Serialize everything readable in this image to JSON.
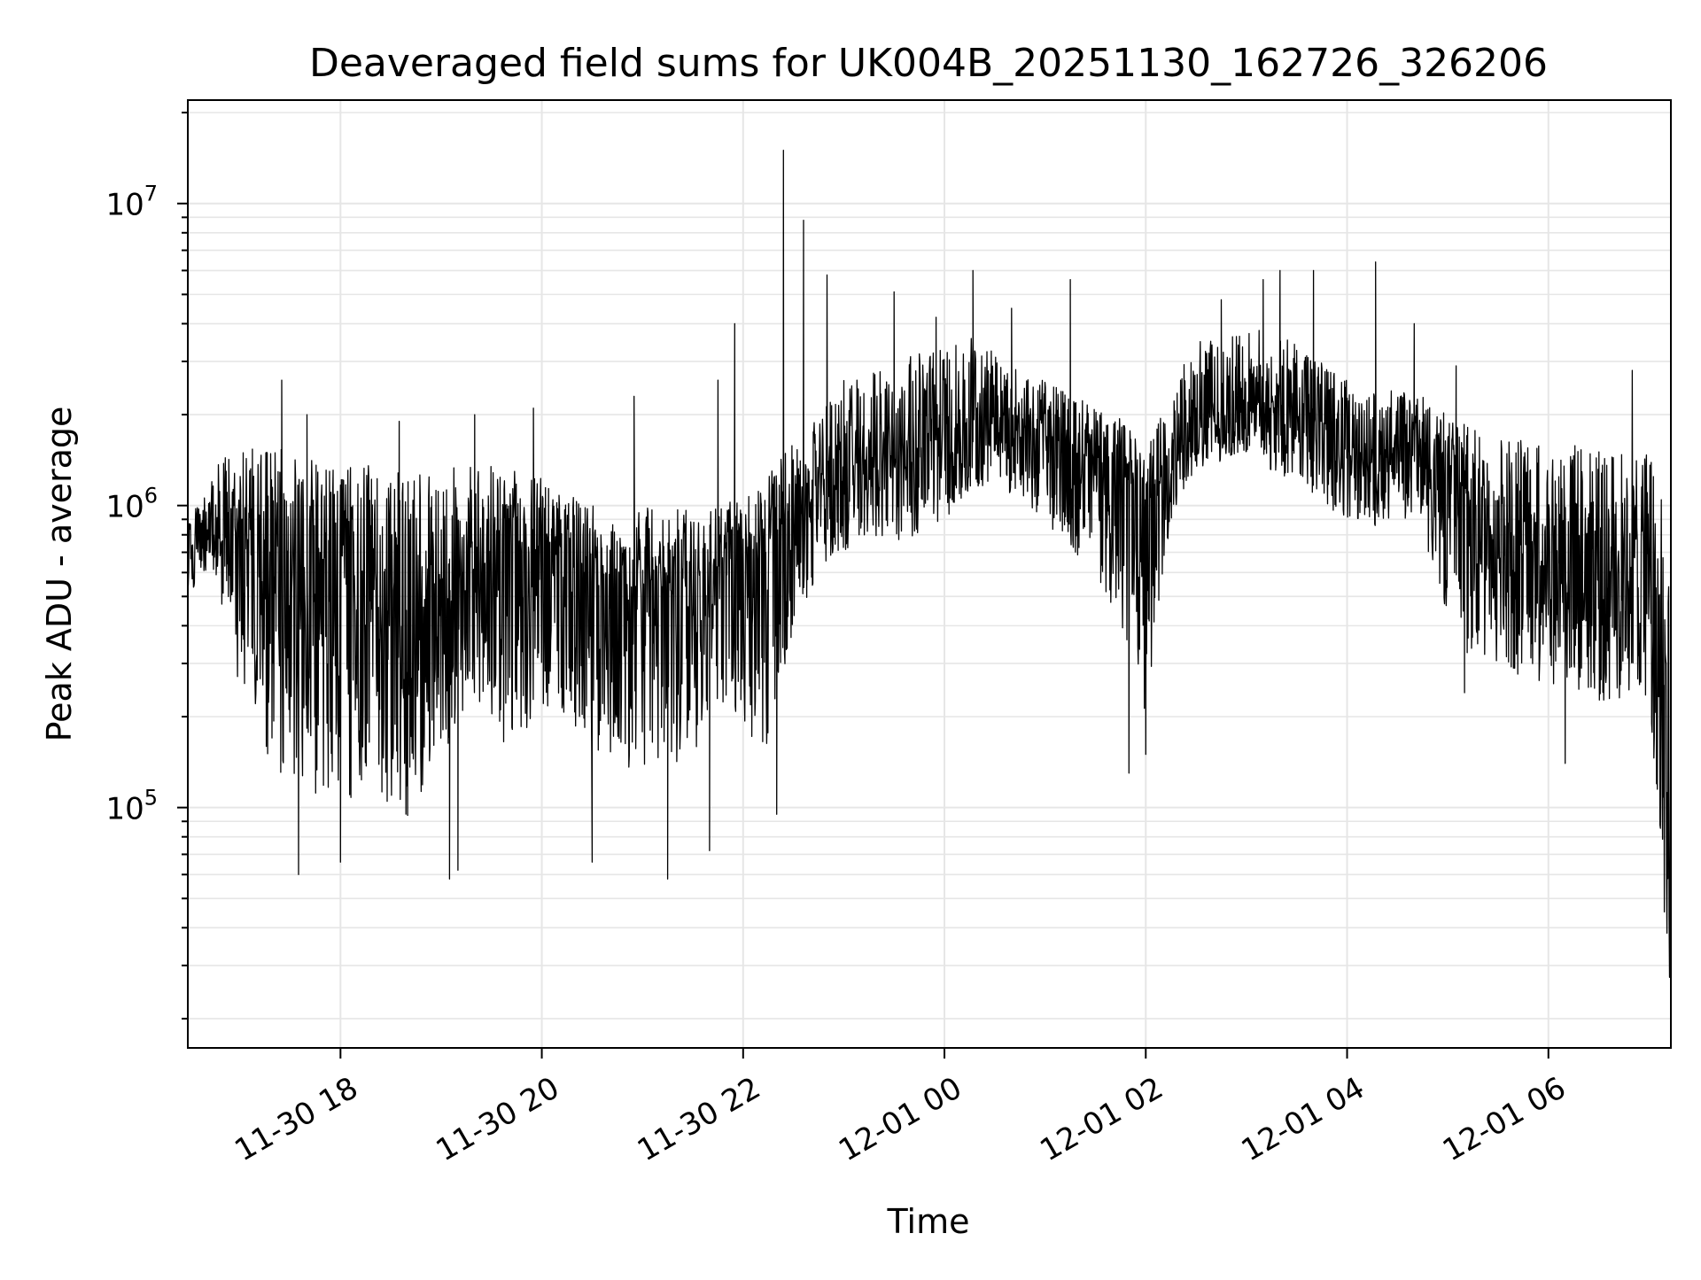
{
  "chart_data": {
    "type": "line",
    "title": "Deaveraged field sums for UK004B_20251130_162726_326206",
    "xlabel": "Time",
    "ylabel": "Peak ADU - average",
    "x_axis": {
      "kind": "datetime",
      "start": "2025-11-30T16:29:00",
      "end": "2025-12-01T07:13:00",
      "tick_values": [
        "2025-11-30T18:00",
        "2025-11-30T20:00",
        "2025-11-30T22:00",
        "2025-12-01T00:00",
        "2025-12-01T02:00",
        "2025-12-01T04:00",
        "2025-12-01T06:00"
      ],
      "tick_labels": [
        "11-30 18",
        "11-30 20",
        "11-30 22",
        "12-01 00",
        "12-01 02",
        "12-01 04",
        "12-01 06"
      ]
    },
    "y_axis": {
      "scale": "log",
      "ylim": [
        16000,
        22000000
      ],
      "major_ticks": [
        100000,
        1000000,
        10000000
      ],
      "major_tick_labels": [
        {
          "base": "10",
          "exp": "5"
        },
        {
          "base": "10",
          "exp": "6"
        },
        {
          "base": "10",
          "exp": "7"
        }
      ]
    },
    "grid": true,
    "line_color": "#000000",
    "grid_color": "#e6e6e6",
    "series": [
      {
        "time": [
          "2025-11-30T16:29",
          "2025-11-30T16:45",
          "2025-11-30T17:00",
          "2025-11-30T17:15",
          "2025-11-30T17:30",
          "2025-11-30T17:45",
          "2025-11-30T18:00",
          "2025-11-30T18:15",
          "2025-11-30T18:30",
          "2025-11-30T18:45",
          "2025-11-30T19:00",
          "2025-11-30T19:15",
          "2025-11-30T19:30",
          "2025-11-30T19:45",
          "2025-11-30T20:00",
          "2025-11-30T20:15",
          "2025-11-30T20:30",
          "2025-11-30T20:45",
          "2025-11-30T21:00",
          "2025-11-30T21:15",
          "2025-11-30T21:30",
          "2025-11-30T21:45",
          "2025-11-30T22:00",
          "2025-11-30T22:15",
          "2025-11-30T22:30",
          "2025-11-30T22:45",
          "2025-11-30T23:00",
          "2025-11-30T23:15",
          "2025-11-30T23:30",
          "2025-11-30T23:45",
          "2025-12-01T00:00",
          "2025-12-01T00:15",
          "2025-12-01T00:30",
          "2025-12-01T00:45",
          "2025-12-01T01:00",
          "2025-12-01T01:15",
          "2025-12-01T01:30",
          "2025-12-01T01:45",
          "2025-12-01T02:00",
          "2025-12-01T02:15",
          "2025-12-01T02:30",
          "2025-12-01T02:45",
          "2025-12-01T03:00",
          "2025-12-01T03:15",
          "2025-12-01T03:30",
          "2025-12-01T03:45",
          "2025-12-01T04:00",
          "2025-12-01T04:15",
          "2025-12-01T04:30",
          "2025-12-01T04:45",
          "2025-12-01T05:00",
          "2025-12-01T05:15",
          "2025-12-01T05:30",
          "2025-12-01T05:45",
          "2025-12-01T06:00",
          "2025-12-01T06:15",
          "2025-12-01T06:30",
          "2025-12-01T06:45",
          "2025-12-01T07:00",
          "2025-12-01T07:13"
        ],
        "median": [
          650000,
          900000,
          800000,
          700000,
          650000,
          600000,
          550000,
          500000,
          480000,
          450000,
          500000,
          550000,
          600000,
          650000,
          700000,
          600000,
          550000,
          500000,
          550000,
          500000,
          550000,
          600000,
          650000,
          700000,
          900000,
          1100000,
          1300000,
          1400000,
          1500000,
          1600000,
          1700000,
          1900000,
          2000000,
          1800000,
          1700000,
          1500000,
          1400000,
          1300000,
          1000000,
          1300000,
          1900000,
          2000000,
          2200000,
          2100000,
          2000000,
          1700000,
          1500000,
          1400000,
          1500000,
          1600000,
          1300000,
          1000000,
          900000,
          800000,
          800000,
          750000,
          700000,
          700000,
          650000,
          100000
        ],
        "low": [
          520000,
          600000,
          250000,
          150000,
          120000,
          110000,
          100000,
          120000,
          100000,
          90000,
          150000,
          200000,
          180000,
          150000,
          220000,
          200000,
          150000,
          130000,
          140000,
          120000,
          150000,
          200000,
          180000,
          150000,
          400000,
          600000,
          700000,
          800000,
          750000,
          800000,
          900000,
          1100000,
          1200000,
          1000000,
          900000,
          700000,
          600000,
          400000,
          200000,
          900000,
          1300000,
          1400000,
          1500000,
          1300000,
          1200000,
          1000000,
          900000,
          850000,
          900000,
          800000,
          400000,
          300000,
          280000,
          250000,
          260000,
          240000,
          220000,
          230000,
          200000,
          22000
        ],
        "high": [
          850000,
          1400000,
          1500000,
          1600000,
          1500000,
          1400000,
          1400000,
          1400000,
          1300000,
          1300000,
          1400000,
          1400000,
          1400000,
          1300000,
          1300000,
          1100000,
          1000000,
          900000,
          1000000,
          950000,
          1000000,
          1000000,
          1100000,
          1300000,
          1600000,
          2000000,
          2600000,
          2900000,
          3000000,
          3200000,
          3400000,
          3600000,
          3200000,
          2800000,
          2600000,
          2400000,
          2200000,
          2000000,
          1500000,
          2600000,
          3600000,
          3500000,
          3800000,
          3900000,
          3500000,
          3000000,
          2600000,
          2400000,
          2500000,
          2300000,
          2000000,
          1800000,
          1700000,
          1700000,
          1600000,
          1600000,
          1550000,
          1500000,
          1500000,
          1000000
        ],
        "spikes": [
          {
            "time": "2025-11-30T17:25",
            "value": 2600000
          },
          {
            "time": "2025-11-30T17:40",
            "value": 2000000
          },
          {
            "time": "2025-11-30T18:35",
            "value": 1900000
          },
          {
            "time": "2025-11-30T19:20",
            "value": 2000000
          },
          {
            "time": "2025-11-30T19:55",
            "value": 2100000
          },
          {
            "time": "2025-11-30T20:55",
            "value": 2300000
          },
          {
            "time": "2025-11-30T21:45",
            "value": 2600000
          },
          {
            "time": "2025-11-30T21:55",
            "value": 4000000
          },
          {
            "time": "2025-11-30T22:24",
            "value": 15000000
          },
          {
            "time": "2025-11-30T22:36",
            "value": 8800000
          },
          {
            "time": "2025-11-30T22:50",
            "value": 5800000
          },
          {
            "time": "2025-11-30T23:30",
            "value": 5100000
          },
          {
            "time": "2025-11-30T23:55",
            "value": 4200000
          },
          {
            "time": "2025-12-01T00:17",
            "value": 6000000
          },
          {
            "time": "2025-12-01T00:40",
            "value": 4500000
          },
          {
            "time": "2025-12-01T01:15",
            "value": 5600000
          },
          {
            "time": "2025-12-01T02:45",
            "value": 4800000
          },
          {
            "time": "2025-12-01T03:10",
            "value": 5600000
          },
          {
            "time": "2025-12-01T03:20",
            "value": 6000000
          },
          {
            "time": "2025-12-01T03:40",
            "value": 6000000
          },
          {
            "time": "2025-12-01T04:17",
            "value": 6400000
          },
          {
            "time": "2025-12-01T04:40",
            "value": 4000000
          },
          {
            "time": "2025-12-01T05:05",
            "value": 2900000
          },
          {
            "time": "2025-12-01T06:50",
            "value": 2800000
          }
        ],
        "dips": [
          {
            "time": "2025-11-30T17:35",
            "value": 60000
          },
          {
            "time": "2025-11-30T18:00",
            "value": 66000
          },
          {
            "time": "2025-11-30T19:05",
            "value": 58000
          },
          {
            "time": "2025-11-30T19:10",
            "value": 62000
          },
          {
            "time": "2025-11-30T20:30",
            "value": 66000
          },
          {
            "time": "2025-11-30T21:15",
            "value": 58000
          },
          {
            "time": "2025-11-30T21:40",
            "value": 72000
          },
          {
            "time": "2025-11-30T22:20",
            "value": 95000
          },
          {
            "time": "2025-12-01T01:50",
            "value": 130000
          },
          {
            "time": "2025-12-01T02:00",
            "value": 150000
          },
          {
            "time": "2025-12-01T05:10",
            "value": 240000
          },
          {
            "time": "2025-12-01T06:10",
            "value": 140000
          },
          {
            "time": "2025-12-01T07:13",
            "value": 22000
          }
        ]
      }
    ]
  }
}
